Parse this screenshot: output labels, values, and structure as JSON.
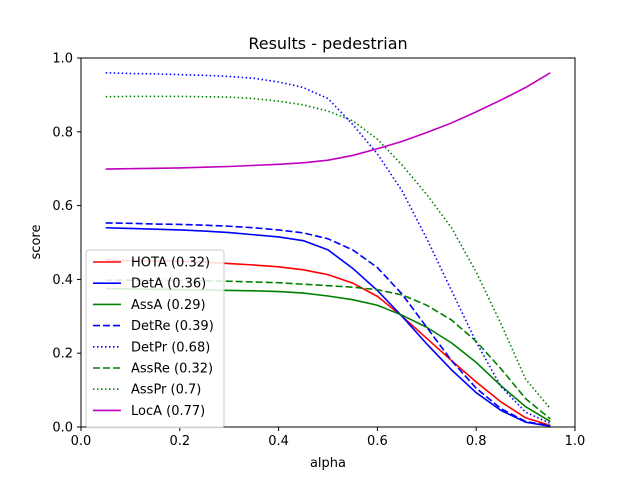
{
  "chart_data": {
    "type": "line",
    "title": "Results - pedestrian",
    "xlabel": "alpha",
    "ylabel": "score",
    "xlim": [
      0.0,
      1.0
    ],
    "ylim": [
      0.0,
      1.0
    ],
    "xticks": [
      "0.0",
      "0.2",
      "0.4",
      "0.6",
      "0.8",
      "1.0"
    ],
    "yticks": [
      "0.0",
      "0.2",
      "0.4",
      "0.6",
      "0.8",
      "1.0"
    ],
    "grid": false,
    "legend_position": "lower-left",
    "x": [
      0.05,
      0.1,
      0.15,
      0.2,
      0.25,
      0.3,
      0.35,
      0.4,
      0.45,
      0.5,
      0.55,
      0.6,
      0.65,
      0.7,
      0.75,
      0.8,
      0.85,
      0.9,
      0.95
    ],
    "series": [
      {
        "name": "HOTA (0.32)",
        "color": "#ff0000",
        "dash": "solid",
        "values": [
          0.452,
          0.451,
          0.45,
          0.449,
          0.447,
          0.443,
          0.439,
          0.434,
          0.426,
          0.413,
          0.39,
          0.354,
          0.3,
          0.24,
          0.18,
          0.122,
          0.068,
          0.025,
          0.004
        ]
      },
      {
        "name": "DetA (0.36)",
        "color": "#0000ff",
        "dash": "solid",
        "values": [
          0.54,
          0.538,
          0.536,
          0.534,
          0.531,
          0.527,
          0.521,
          0.515,
          0.505,
          0.48,
          0.43,
          0.37,
          0.3,
          0.225,
          0.155,
          0.093,
          0.045,
          0.013,
          0.002
        ]
      },
      {
        "name": "AssA (0.29)",
        "color": "#008000",
        "dash": "solid",
        "values": [
          0.375,
          0.374,
          0.373,
          0.372,
          0.371,
          0.37,
          0.369,
          0.367,
          0.363,
          0.355,
          0.345,
          0.33,
          0.303,
          0.27,
          0.228,
          0.175,
          0.112,
          0.055,
          0.015
        ]
      },
      {
        "name": "DetRe (0.39)",
        "color": "#0000ff",
        "dash": "dashed",
        "values": [
          0.553,
          0.552,
          0.55,
          0.549,
          0.547,
          0.544,
          0.54,
          0.534,
          0.526,
          0.51,
          0.48,
          0.432,
          0.36,
          0.27,
          0.18,
          0.105,
          0.05,
          0.015,
          0.003
        ]
      },
      {
        "name": "DetPr (0.68)",
        "color": "#0000ff",
        "dash": "dotted",
        "values": [
          0.96,
          0.958,
          0.957,
          0.955,
          0.953,
          0.95,
          0.945,
          0.935,
          0.92,
          0.89,
          0.82,
          0.74,
          0.64,
          0.51,
          0.37,
          0.23,
          0.11,
          0.04,
          0.01
        ]
      },
      {
        "name": "AssRe (0.32)",
        "color": "#008000",
        "dash": "dashed",
        "values": [
          0.398,
          0.398,
          0.397,
          0.397,
          0.396,
          0.395,
          0.393,
          0.391,
          0.387,
          0.383,
          0.379,
          0.372,
          0.358,
          0.33,
          0.29,
          0.232,
          0.158,
          0.077,
          0.022
        ]
      },
      {
        "name": "AssPr (0.7)",
        "color": "#008000",
        "dash": "dotted",
        "values": [
          0.895,
          0.896,
          0.896,
          0.896,
          0.895,
          0.894,
          0.89,
          0.883,
          0.873,
          0.856,
          0.83,
          0.78,
          0.71,
          0.63,
          0.54,
          0.42,
          0.28,
          0.13,
          0.05
        ]
      },
      {
        "name": "LocA (0.77)",
        "color": "#bf00bf",
        "dash": "solid",
        "values": [
          0.699,
          0.7,
          0.701,
          0.702,
          0.704,
          0.706,
          0.709,
          0.712,
          0.716,
          0.723,
          0.736,
          0.754,
          0.774,
          0.798,
          0.824,
          0.854,
          0.886,
          0.92,
          0.96
        ]
      }
    ]
  }
}
